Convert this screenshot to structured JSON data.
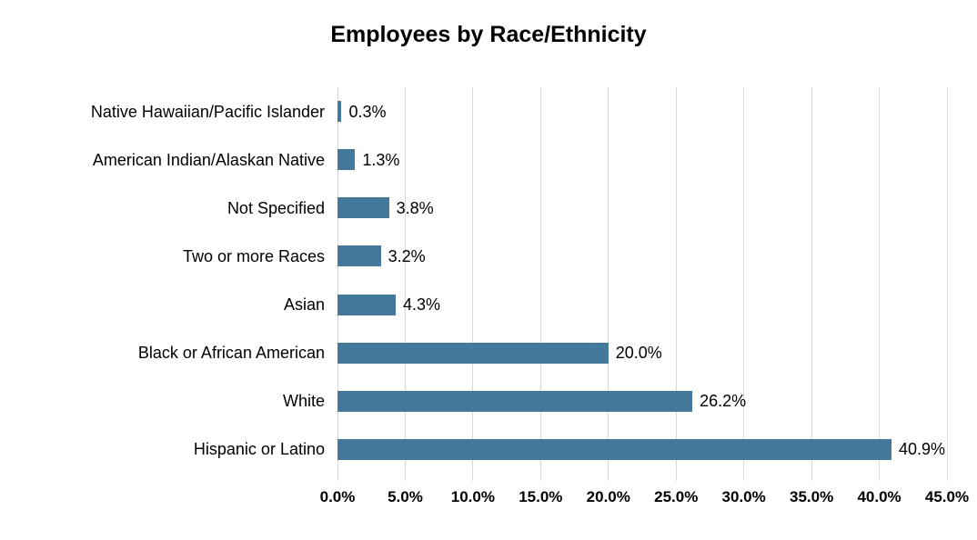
{
  "chart_data": {
    "type": "bar",
    "orientation": "horizontal",
    "title": "Employees by Race/Ethnicity",
    "categories": [
      "Native Hawaiian/Pacific Islander",
      "American Indian/Alaskan Native",
      "Not Specified",
      "Two or more Races",
      "Asian",
      "Black or African American",
      "White",
      "Hispanic or Latino"
    ],
    "values": [
      0.3,
      1.3,
      3.8,
      3.2,
      4.3,
      20.0,
      26.2,
      40.9
    ],
    "data_labels": [
      "0.3%",
      "1.3%",
      "3.8%",
      "3.2%",
      "4.3%",
      "20.0%",
      "26.2%",
      "40.9%"
    ],
    "x_ticks": [
      "0.0%",
      "5.0%",
      "10.0%",
      "15.0%",
      "20.0%",
      "25.0%",
      "30.0%",
      "35.0%",
      "40.0%",
      "45.0%"
    ],
    "x_tick_values": [
      0,
      5,
      10,
      15,
      20,
      25,
      30,
      35,
      40,
      45
    ],
    "xlim": [
      0,
      45
    ],
    "grid": true,
    "legend": "none",
    "bar_color": "#44799B",
    "gridline_color": "#D9D9D9",
    "text_color": "#000000",
    "background_color": "#FFFFFF"
  }
}
